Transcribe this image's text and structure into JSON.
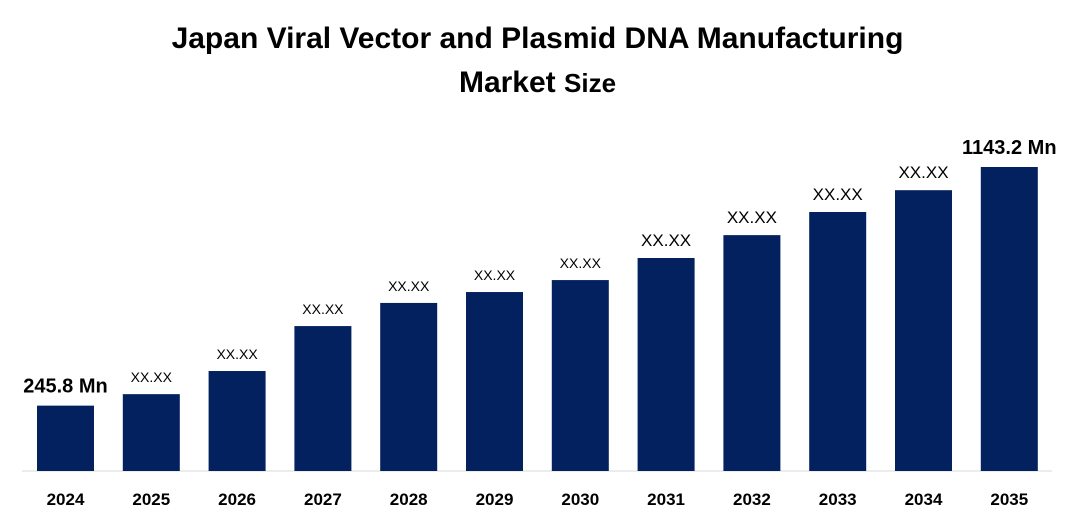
{
  "chart_data": {
    "type": "bar",
    "title_line1": "Japan Viral Vector and Plasmid DNA Manufacturing",
    "title_line2_a": "Market",
    "title_line2_b": "Size",
    "xlabel": "",
    "ylabel": "",
    "categories": [
      "2024",
      "2025",
      "2026",
      "2027",
      "2028",
      "2029",
      "2030",
      "2031",
      "2032",
      "2033",
      "2034",
      "2035"
    ],
    "values": [
      245.8,
      289,
      376,
      545,
      632,
      673,
      718,
      801,
      887,
      974,
      1056,
      1143.2
    ],
    "data_labels": [
      "245.8 Mn",
      "XX.XX",
      "XX.XX",
      "XX.XX",
      "XX.XX",
      "XX.XX",
      "XX.XX",
      "XX.XX",
      "XX.XX",
      "XX.XX",
      "XX.XX",
      "1143.2 Mn"
    ],
    "ylim": [
      0,
      1143.2
    ],
    "grid": false,
    "legend": "none",
    "bar_color": "#03215F"
  }
}
